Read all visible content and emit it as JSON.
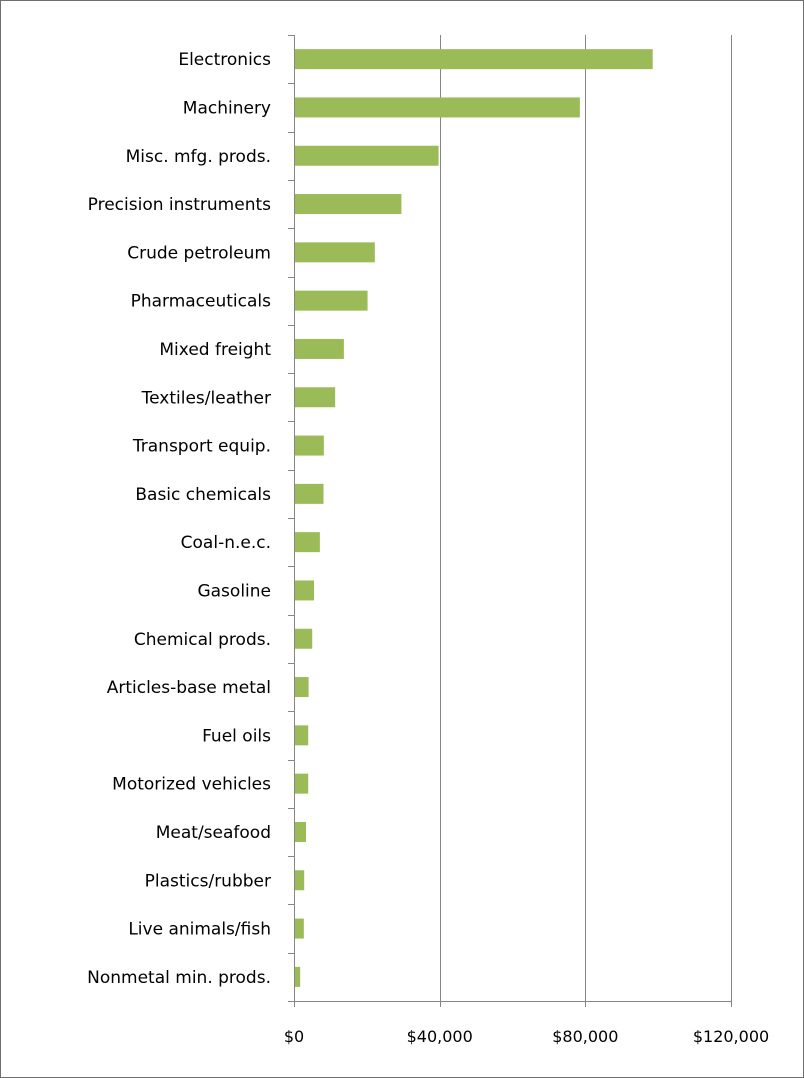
{
  "chart_data": {
    "type": "bar",
    "orientation": "horizontal",
    "title": "",
    "xlabel": "",
    "ylabel": "",
    "categories": [
      "Electronics",
      "Machinery",
      "Misc. mfg. prods.",
      "Precision instruments",
      "Crude petroleum",
      "Pharmaceuticals",
      "Mixed freight",
      "Textiles/leather",
      "Transport equip.",
      "Basic chemicals",
      "Coal-n.e.c.",
      "Gasoline",
      "Chemical prods.",
      "Articles-base metal",
      "Fuel oils",
      "Motorized vehicles",
      "Meat/seafood",
      "Plastics/rubber",
      "Live animals/fish",
      "Nonmetal min. prods."
    ],
    "values": [
      98500,
      78500,
      39700,
      29500,
      22200,
      20200,
      13700,
      11300,
      8200,
      8100,
      7100,
      5500,
      5000,
      4000,
      3900,
      3900,
      3300,
      2800,
      2700,
      1700
    ],
    "xlim": [
      0,
      120000
    ],
    "x_ticks": [
      0,
      40000,
      80000,
      120000
    ],
    "x_tick_labels": [
      "$0",
      "$40,000",
      "$80,000",
      "$120,000"
    ],
    "grid": "vertical major gridlines",
    "legend": "none",
    "bar_color": "#9bbb59",
    "gridline_color": "#868686"
  }
}
